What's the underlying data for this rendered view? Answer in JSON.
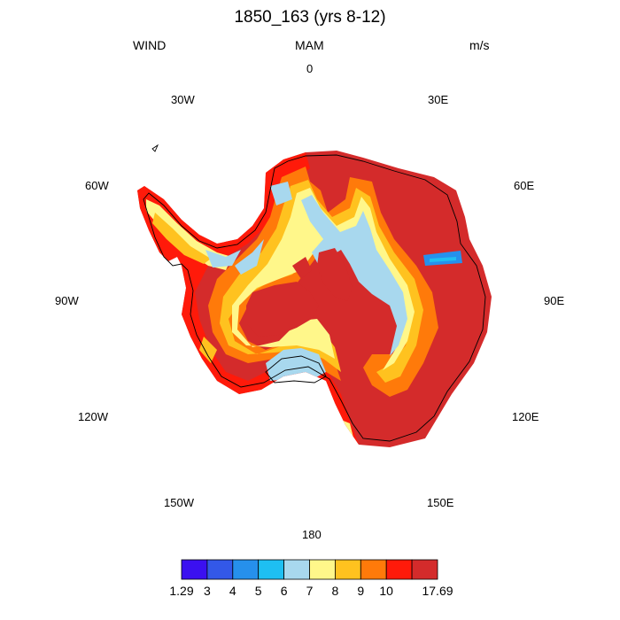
{
  "header": {
    "title": "1850_163 (yrs 8-12)",
    "left": "WIND",
    "center": "MAM",
    "right": "m/s"
  },
  "longitude_labels": {
    "n": "0",
    "e30": "30E",
    "e60": "60E",
    "e90": "90E",
    "e120": "120E",
    "e150": "150E",
    "s": "180",
    "w150": "150W",
    "w120": "120W",
    "w90": "90W",
    "w60": "60W",
    "w30": "30W"
  },
  "colorbar": {
    "labels": [
      "1.29",
      "3",
      "4",
      "5",
      "6",
      "7",
      "8",
      "9",
      "10",
      "17.69"
    ],
    "colors": [
      "#3b10f0",
      "#3358e8",
      "#2690ec",
      "#1ebff2",
      "#a8d8ee",
      "#fff78a",
      "#ffc21f",
      "#ff7a0a",
      "#ff1a0a",
      "#d42b2b"
    ]
  },
  "map": {
    "type": "polar stereographic filled contour",
    "region": "Antarctica",
    "variable": "WIND",
    "season": "MAM",
    "units": "m/s"
  }
}
